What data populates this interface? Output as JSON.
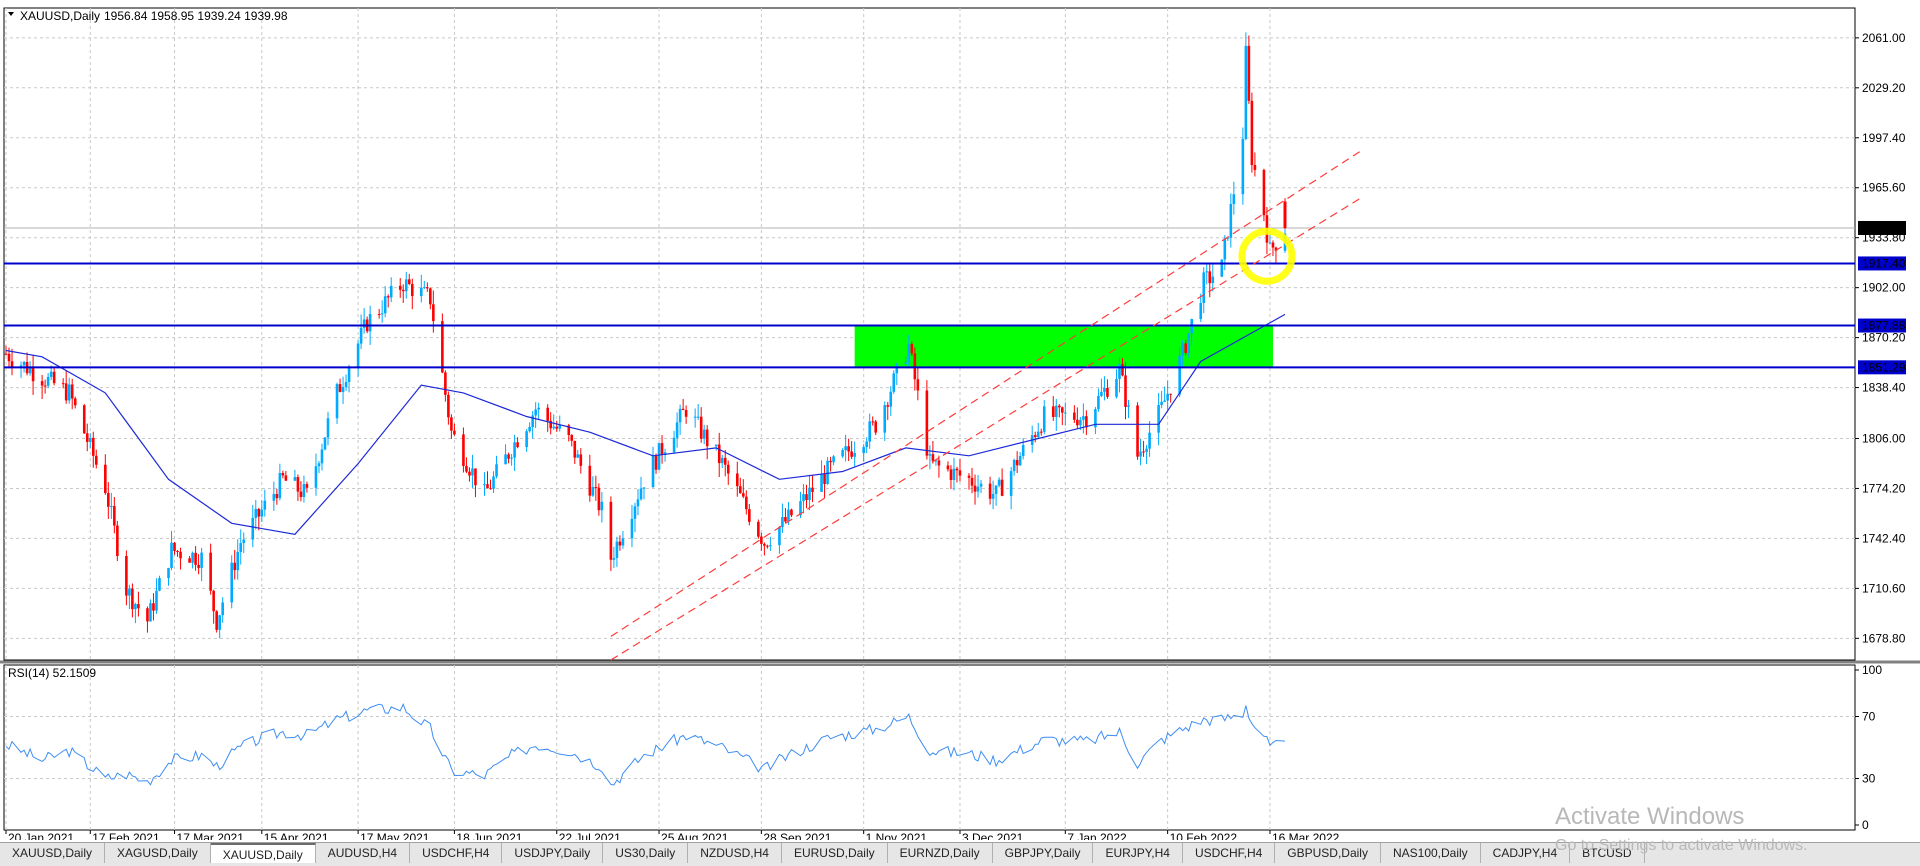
{
  "chart_header": {
    "symbol": "XAUUSD,Daily",
    "ohlc": "1956.84 1958.95 1939.24 1939.98"
  },
  "rsi_header": {
    "label": "RSI(14) 52.1509"
  },
  "price_axis": {
    "labels": [
      "2061.00",
      "2029.20",
      "1997.40",
      "1965.60",
      "1933.80",
      "1902.00",
      "1870.20",
      "1838.40",
      "1806.00",
      "1774.20",
      "1742.40",
      "1710.60",
      "1678.80"
    ],
    "current_price": "1939.98"
  },
  "rsi_axis": {
    "labels": [
      "100",
      "70",
      "30",
      "0"
    ]
  },
  "time_axis": {
    "labels": [
      "20 Jan 2021",
      "17 Feb 2021",
      "17 Mar 2021",
      "15 Apr 2021",
      "17 May 2021",
      "18 Jun 2021",
      "22 Jul 2021",
      "25 Aug 2021",
      "28 Sep 2021",
      "1 Nov 2021",
      "3 Dec 2021",
      "7 Jan 2022",
      "10 Feb 2022",
      "16 Mar 2022"
    ]
  },
  "horizontal_levels": [
    {
      "label": "1917.40",
      "color": "#0000cc"
    },
    {
      "label": "1877.88",
      "color": "#0000cc"
    },
    {
      "label": "1851.29",
      "color": "#0000cc"
    }
  ],
  "colors": {
    "bull": "#00aaff",
    "bear": "#ff0000",
    "ma": "#1c2ad8",
    "zone": "#00ff00",
    "trend": "#ff3b3b",
    "highlight": "#ffff00",
    "rsi": "#3d8ef2"
  },
  "tabs": [
    "XAUUSD,Daily",
    "XAGUSD,Daily",
    "XAUUSD,Daily",
    "AUDUSD,H4",
    "USDCHF,H4",
    "USDJPY,Daily",
    "US30,Daily",
    "NZDUSD,H4",
    "EURUSD,Daily",
    "EURNZD,Daily",
    "GBPJPY,Daily",
    "EURJPY,H4",
    "USDCHF,H4",
    "GBPUSD,Daily",
    "NAS100,Daily",
    "CADJPY,H4",
    "BTCUSD"
  ],
  "active_tab": 2,
  "watermark": {
    "line1": "Activate Windows",
    "line2": "Go to Settings to activate Windows."
  },
  "chart_data": [
    {
      "type": "candlestick",
      "symbol": "XAUUSD",
      "timeframe": "Daily",
      "x_range": [
        "2021-01-20",
        "2022-03-21"
      ],
      "ylim": [
        1665,
        2080
      ],
      "last_ohlc": {
        "open": 1956.84,
        "high": 1958.95,
        "low": 1939.24,
        "close": 1939.98
      },
      "path_points": [
        [
          "2021-01-20",
          1860
        ],
        [
          "2021-02-01",
          1845
        ],
        [
          "2021-02-10",
          1835
        ],
        [
          "2021-02-22",
          1775
        ],
        [
          "2021-03-01",
          1710
        ],
        [
          "2021-03-08",
          1690
        ],
        [
          "2021-03-16",
          1735
        ],
        [
          "2021-03-26",
          1730
        ],
        [
          "2021-03-31",
          1690
        ],
        [
          "2021-04-08",
          1740
        ],
        [
          "2021-04-15",
          1760
        ],
        [
          "2021-04-22",
          1780
        ],
        [
          "2021-04-30",
          1770
        ],
        [
          "2021-05-10",
          1835
        ],
        [
          "2021-05-20",
          1880
        ],
        [
          "2021-06-01",
          1905
        ],
        [
          "2021-06-10",
          1895
        ],
        [
          "2021-06-17",
          1810
        ],
        [
          "2021-06-28",
          1770
        ],
        [
          "2021-07-07",
          1800
        ],
        [
          "2021-07-15",
          1825
        ],
        [
          "2021-07-26",
          1805
        ],
        [
          "2021-08-06",
          1760
        ],
        [
          "2021-08-09",
          1730
        ],
        [
          "2021-08-20",
          1780
        ],
        [
          "2021-09-03",
          1825
        ],
        [
          "2021-09-15",
          1790
        ],
        [
          "2021-09-29",
          1740
        ],
        [
          "2021-10-07",
          1755
        ],
        [
          "2021-10-20",
          1785
        ],
        [
          "2021-11-05",
          1815
        ],
        [
          "2021-11-16",
          1865
        ],
        [
          "2021-11-23",
          1790
        ],
        [
          "2021-12-06",
          1780
        ],
        [
          "2021-12-15",
          1770
        ],
        [
          "2021-12-31",
          1820
        ],
        [
          "2022-01-14",
          1820
        ],
        [
          "2022-01-25",
          1850
        ],
        [
          "2022-01-31",
          1795
        ],
        [
          "2022-02-08",
          1825
        ],
        [
          "2022-02-15",
          1860
        ],
        [
          "2022-02-22",
          1905
        ],
        [
          "2022-02-28",
          1915
        ],
        [
          "2022-03-07",
          2000
        ],
        [
          "2022-03-08",
          2050
        ],
        [
          "2022-03-10",
          1985
        ],
        [
          "2022-03-14",
          1950
        ],
        [
          "2022-03-16",
          1925
        ],
        [
          "2022-03-21",
          1940
        ]
      ],
      "moving_average": [
        [
          "2021-01-20",
          1862
        ],
        [
          "2021-02-01",
          1858
        ],
        [
          "2021-02-22",
          1835
        ],
        [
          "2021-03-15",
          1780
        ],
        [
          "2021-04-05",
          1752
        ],
        [
          "2021-04-26",
          1745
        ],
        [
          "2021-05-17",
          1790
        ],
        [
          "2021-06-07",
          1840
        ],
        [
          "2021-06-21",
          1835
        ],
        [
          "2021-07-12",
          1820
        ],
        [
          "2021-08-02",
          1810
        ],
        [
          "2021-08-23",
          1795
        ],
        [
          "2021-09-13",
          1800
        ],
        [
          "2021-10-04",
          1780
        ],
        [
          "2021-10-25",
          1785
        ],
        [
          "2021-11-15",
          1800
        ],
        [
          "2021-12-06",
          1795
        ],
        [
          "2021-12-27",
          1805
        ],
        [
          "2022-01-17",
          1815
        ],
        [
          "2022-02-07",
          1815
        ],
        [
          "2022-02-21",
          1855
        ],
        [
          "2022-03-07",
          1870
        ],
        [
          "2022-03-21",
          1885
        ]
      ],
      "levels": [
        1917.4,
        1877.88,
        1851.29
      ],
      "zone": {
        "from": "2021-10-29",
        "to": "2022-03-17",
        "low": 1851.29,
        "high": 1877.88
      },
      "trend_lines": [
        {
          "from": [
            "2021-08-09",
            1680
          ],
          "to": [
            "2022-04-16",
            1990
          ]
        },
        {
          "from": [
            "2021-08-09",
            1665
          ],
          "to": [
            "2022-04-16",
            1960
          ]
        }
      ],
      "highlight": {
        "date": "2022-03-15",
        "price": 1922
      }
    },
    {
      "type": "line",
      "name": "RSI(14)",
      "last_value": 52.1509,
      "ylim": [
        0,
        100
      ],
      "levels": [
        70,
        30
      ],
      "values": [
        [
          "2021-01-20",
          52
        ],
        [
          "2021-02-01",
          42
        ],
        [
          "2021-02-10",
          48
        ],
        [
          "2021-02-22",
          30
        ],
        [
          "2021-03-01",
          33
        ],
        [
          "2021-03-08",
          28
        ],
        [
          "2021-03-16",
          42
        ],
        [
          "2021-03-26",
          45
        ],
        [
          "2021-03-31",
          38
        ],
        [
          "2021-04-08",
          50
        ],
        [
          "2021-04-15",
          56
        ],
        [
          "2021-04-22",
          60
        ],
        [
          "2021-04-30",
          58
        ],
        [
          "2021-05-10",
          68
        ],
        [
          "2021-05-20",
          74
        ],
        [
          "2021-06-01",
          76
        ],
        [
          "2021-06-10",
          62
        ],
        [
          "2021-06-17",
          35
        ],
        [
          "2021-06-28",
          32
        ],
        [
          "2021-07-07",
          45
        ],
        [
          "2021-07-15",
          52
        ],
        [
          "2021-07-26",
          48
        ],
        [
          "2021-08-06",
          38
        ],
        [
          "2021-08-09",
          26
        ],
        [
          "2021-08-20",
          45
        ],
        [
          "2021-09-03",
          58
        ],
        [
          "2021-09-15",
          50
        ],
        [
          "2021-09-29",
          36
        ],
        [
          "2021-10-07",
          45
        ],
        [
          "2021-10-20",
          56
        ],
        [
          "2021-11-05",
          62
        ],
        [
          "2021-11-16",
          70
        ],
        [
          "2021-11-23",
          48
        ],
        [
          "2021-12-06",
          46
        ],
        [
          "2021-12-15",
          42
        ],
        [
          "2021-12-31",
          55
        ],
        [
          "2022-01-14",
          54
        ],
        [
          "2022-01-25",
          60
        ],
        [
          "2022-01-31",
          40
        ],
        [
          "2022-02-08",
          55
        ],
        [
          "2022-02-15",
          62
        ],
        [
          "2022-02-22",
          68
        ],
        [
          "2022-02-28",
          68
        ],
        [
          "2022-03-07",
          72
        ],
        [
          "2022-03-08",
          78
        ],
        [
          "2022-03-10",
          66
        ],
        [
          "2022-03-14",
          58
        ],
        [
          "2022-03-16",
          50
        ],
        [
          "2022-03-21",
          52
        ]
      ]
    }
  ]
}
